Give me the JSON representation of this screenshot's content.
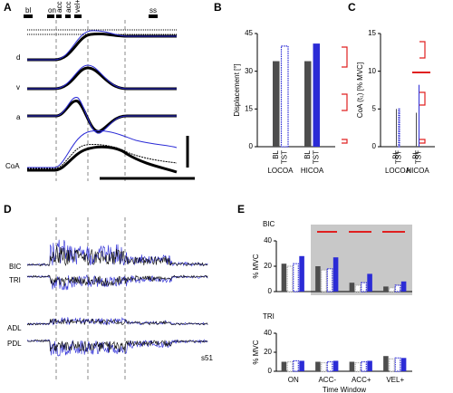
{
  "panel_labels": [
    "A",
    "B",
    "C",
    "D",
    "E"
  ],
  "panel_a": {
    "events": [
      "bl",
      "on",
      "acc -",
      "acc +",
      "vel+",
      "ss"
    ],
    "traces": [
      "d",
      "v",
      "a",
      "CoA"
    ]
  },
  "panel_d": {
    "muscles": [
      "BIC",
      "TRI",
      "ADL",
      "PDL"
    ],
    "subject": "s51"
  },
  "chart_data": [
    {
      "type": "bar",
      "ylabel": "Displacement [°]",
      "categories": [
        "BL",
        "TST",
        "BL",
        "TST"
      ],
      "groups": [
        "LOCOA",
        "HICOA"
      ],
      "values": [
        34,
        40,
        34,
        41
      ],
      "colors": [
        "#4d4d4d",
        "#2b2bd6",
        "#4d4d4d",
        "#2b2bd6"
      ],
      "styles": [
        "solid",
        "dotted",
        "solid",
        "solid"
      ],
      "ylim": [
        0,
        45
      ],
      "yticks": [
        0,
        15,
        30,
        45
      ]
    },
    {
      "type": "bar",
      "ylabel": "CoA (t₁) [% MVC]",
      "categories": [
        "BL",
        "TST",
        "BL",
        "TST"
      ],
      "groups": [
        "LOCOA",
        "HICOA"
      ],
      "values": [
        5,
        5,
        4.5,
        8.2
      ],
      "colors": [
        "#4d4d4d",
        "#2b2bd6",
        "#4d4d4d",
        "#2b2bd6"
      ],
      "styles": [
        "solid",
        "dotted",
        "solid",
        "solid"
      ],
      "ylim": [
        0,
        15
      ],
      "yticks": [
        0,
        5,
        10,
        15
      ]
    },
    {
      "type": "grouped-bar",
      "title": "BIC",
      "ylabel": "% MVC",
      "series": [
        {
          "color": "#4d4d4d",
          "style": "solid",
          "values": [
            22,
            20,
            7,
            4
          ]
        },
        {
          "color": "#b0b0b0",
          "style": "dotted",
          "values": [
            20,
            17,
            5,
            3
          ]
        },
        {
          "color": "#2b2bd6",
          "style": "dotted",
          "values": [
            22,
            18,
            7,
            5
          ]
        },
        {
          "color": "#2b2bd6",
          "style": "solid",
          "values": [
            28,
            27,
            14,
            8
          ]
        }
      ],
      "ylim": [
        0,
        40
      ],
      "yticks": [
        0,
        20,
        40
      ]
    },
    {
      "type": "grouped-bar",
      "title": "TRI",
      "ylabel": "% MVC",
      "xlabel": "Time Window",
      "categories": [
        "ON",
        "ACC-",
        "ACC+",
        "VEL+"
      ],
      "series": [
        {
          "color": "#4d4d4d",
          "style": "solid",
          "values": [
            10,
            10,
            10,
            16
          ]
        },
        {
          "color": "#b0b0b0",
          "style": "dotted",
          "values": [
            10,
            9,
            9,
            13
          ]
        },
        {
          "color": "#2b2bd6",
          "style": "dotted",
          "values": [
            11,
            10,
            10,
            14
          ]
        },
        {
          "color": "#2b2bd6",
          "style": "solid",
          "values": [
            11,
            11,
            11,
            14
          ]
        }
      ],
      "ylim": [
        0,
        40
      ],
      "yticks": [
        0,
        20,
        40
      ]
    }
  ]
}
